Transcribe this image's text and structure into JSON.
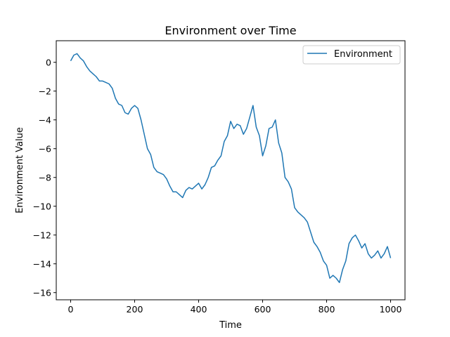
{
  "chart_data": {
    "type": "line",
    "title": "Environment over Time",
    "xlabel": "Time",
    "ylabel": "Environment Value",
    "xlim": [
      -45,
      1045
    ],
    "ylim": [
      -16.5,
      1.5
    ],
    "x_ticks": [
      0,
      200,
      400,
      600,
      800,
      1000
    ],
    "y_ticks": [
      0,
      -2,
      -4,
      -6,
      -8,
      -10,
      -12,
      -14,
      -16
    ],
    "grid": false,
    "legend_position": "upper right",
    "series": [
      {
        "name": "Environment",
        "color": "#1f77b4",
        "x": [
          0,
          10,
          20,
          30,
          40,
          50,
          60,
          70,
          80,
          90,
          100,
          110,
          120,
          130,
          140,
          150,
          160,
          170,
          180,
          190,
          200,
          210,
          220,
          230,
          240,
          250,
          260,
          270,
          280,
          290,
          300,
          310,
          320,
          330,
          340,
          350,
          360,
          370,
          380,
          390,
          400,
          410,
          420,
          430,
          440,
          450,
          460,
          470,
          480,
          490,
          500,
          510,
          520,
          530,
          540,
          550,
          560,
          570,
          580,
          590,
          600,
          610,
          620,
          630,
          640,
          650,
          660,
          670,
          680,
          690,
          700,
          710,
          720,
          730,
          740,
          750,
          760,
          770,
          780,
          790,
          800,
          810,
          820,
          830,
          840,
          850,
          860,
          870,
          880,
          890,
          900,
          910,
          920,
          930,
          940,
          950,
          960,
          970,
          980,
          990,
          1000
        ],
        "values": [
          0.1,
          0.5,
          0.6,
          0.3,
          0.1,
          -0.3,
          -0.6,
          -0.8,
          -1.0,
          -1.3,
          -1.3,
          -1.4,
          -1.5,
          -1.8,
          -2.5,
          -2.9,
          -3.0,
          -3.5,
          -3.6,
          -3.2,
          -3.0,
          -3.2,
          -4.0,
          -5.0,
          -6.0,
          -6.4,
          -7.3,
          -7.6,
          -7.7,
          -7.8,
          -8.1,
          -8.6,
          -9.0,
          -9.0,
          -9.2,
          -9.4,
          -8.9,
          -8.7,
          -8.8,
          -8.6,
          -8.4,
          -8.8,
          -8.5,
          -8.0,
          -7.3,
          -7.2,
          -6.8,
          -6.5,
          -5.5,
          -5.1,
          -4.1,
          -4.6,
          -4.3,
          -4.4,
          -5.0,
          -4.6,
          -3.8,
          -3.0,
          -4.5,
          -5.1,
          -6.5,
          -5.8,
          -4.6,
          -4.5,
          -4.0,
          -5.6,
          -6.3,
          -8.0,
          -8.3,
          -8.8,
          -10.1,
          -10.4,
          -10.6,
          -10.8,
          -11.1,
          -11.8,
          -12.5,
          -12.8,
          -13.2,
          -13.8,
          -14.1,
          -15.0,
          -14.8,
          -15.0,
          -15.3,
          -14.4,
          -13.8,
          -12.6,
          -12.2,
          -12.0,
          -12.4,
          -12.9,
          -12.6,
          -13.3,
          -13.6,
          -13.4,
          -13.1,
          -13.6,
          -13.3,
          -12.8,
          -13.6
        ]
      }
    ]
  }
}
